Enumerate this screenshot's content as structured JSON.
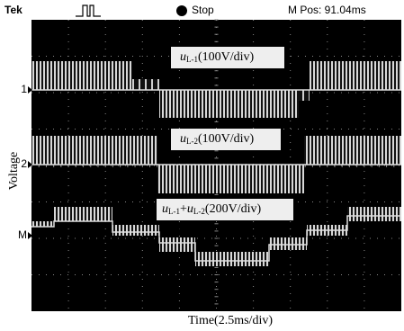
{
  "status_bar": {
    "brand": "Tek",
    "state": "Stop",
    "position": "M Pos: 91.04ms"
  },
  "channels": [
    {
      "marker": "1",
      "label": [
        "u",
        "L-1",
        "(100V/div)"
      ]
    },
    {
      "marker": "2",
      "label": [
        "u",
        "L-2",
        "(100V/div)"
      ]
    },
    {
      "marker": "M",
      "label": [
        "u",
        "L-1",
        "+",
        "u",
        "L-2",
        "(200V/div)"
      ]
    }
  ],
  "axes": {
    "y_label": "Voltage",
    "x_label": "Time(2.5ms/div)"
  }
}
